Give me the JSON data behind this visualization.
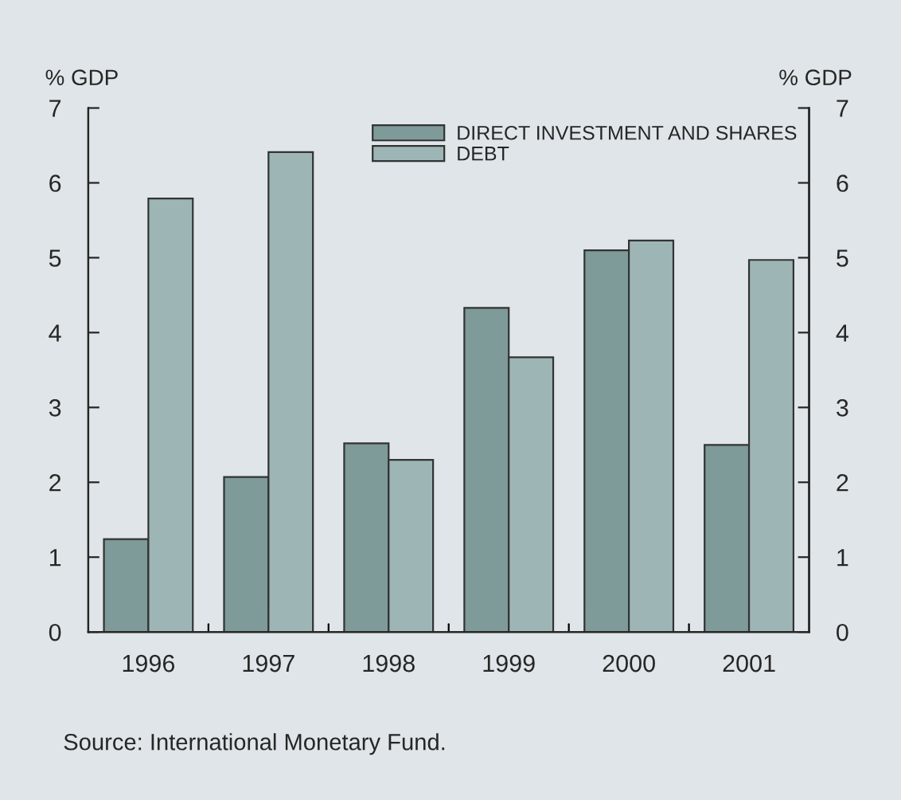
{
  "chart_data": {
    "type": "bar",
    "ylabel": "% GDP",
    "y2label": "% GDP",
    "categories": [
      "1996",
      "1997",
      "1998",
      "1999",
      "2000",
      "2001"
    ],
    "series": [
      {
        "name": "DIRECT INVESTMENT AND SHARES",
        "color": "#7e9a99",
        "values": [
          1.24,
          2.07,
          2.52,
          4.33,
          5.1,
          2.5
        ]
      },
      {
        "name": "DEBT",
        "color": "#9db6b5",
        "values": [
          5.79,
          6.41,
          2.3,
          3.67,
          5.23,
          4.97
        ]
      }
    ],
    "ylim": [
      0,
      7
    ],
    "yticks": [
      0,
      1,
      2,
      3,
      4,
      5,
      6,
      7
    ],
    "y2lim": [
      0,
      7
    ],
    "y2ticks": [
      0,
      1,
      2,
      3,
      4,
      5,
      6,
      7
    ],
    "grid": false,
    "legend": "top right",
    "annotations": [
      "Source: International Monetary Fund."
    ]
  }
}
